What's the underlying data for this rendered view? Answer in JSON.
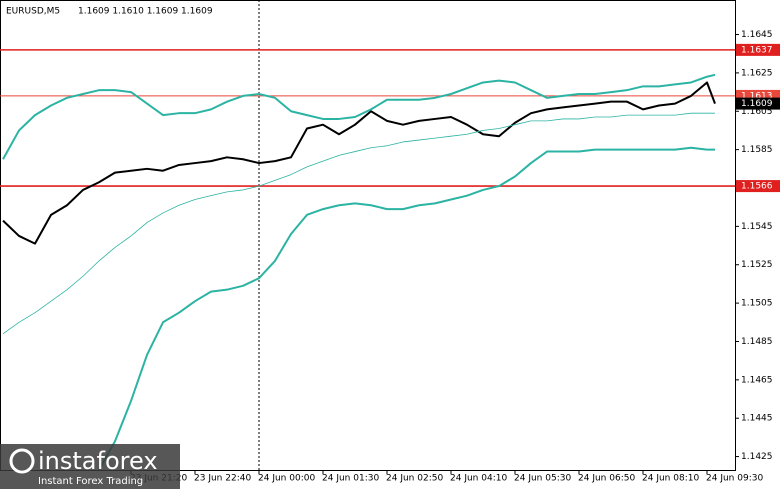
{
  "chart_data": {
    "type": "line",
    "title": "EURUSD,M5",
    "subtitle": "1.1609 1.1610 1.1609 1.1609",
    "x": [
      0,
      4,
      8,
      12,
      16,
      20,
      24,
      28,
      32,
      36,
      40,
      44,
      48,
      52,
      56,
      60,
      64,
      68,
      72,
      76,
      80,
      84,
      88,
      92,
      96,
      100,
      104,
      108,
      112,
      116,
      120,
      124,
      128,
      132,
      136,
      140,
      144,
      148,
      152,
      156,
      160,
      164,
      168,
      172,
      176,
      178
    ],
    "series": [
      {
        "color": "#000000",
        "values": [
          1.1548,
          1.154,
          1.1536,
          1.1551,
          1.1556,
          1.1564,
          1.1568,
          1.1573,
          1.1574,
          1.1575,
          1.1574,
          1.1577,
          1.1578,
          1.1579,
          1.1581,
          1.158,
          1.1578,
          1.1579,
          1.1581,
          1.1596,
          1.1598,
          1.1593,
          1.1598,
          1.1605,
          1.16,
          1.1598,
          1.16,
          1.1601,
          1.1602,
          1.1598,
          1.1593,
          1.1592,
          1.1599,
          1.1604,
          1.1606,
          1.1607,
          1.1608,
          1.1609,
          1.161,
          1.161,
          1.1606,
          1.1608,
          1.1609,
          1.1613,
          1.162,
          1.1609
        ]
      },
      {
        "color": "#2bb3a3",
        "values": [
          1.158,
          1.1595,
          1.1603,
          1.1608,
          1.1612,
          1.1614,
          1.1616,
          1.1616,
          1.1615,
          1.1609,
          1.1603,
          1.1604,
          1.1604,
          1.1606,
          1.161,
          1.1613,
          1.1614,
          1.1612,
          1.1605,
          1.1603,
          1.1601,
          1.1601,
          1.1602,
          1.1606,
          1.1611,
          1.1611,
          1.1611,
          1.1612,
          1.1614,
          1.1617,
          1.162,
          1.1621,
          1.162,
          1.1616,
          1.1612,
          1.1613,
          1.1614,
          1.1614,
          1.1615,
          1.1616,
          1.1618,
          1.1618,
          1.1619,
          1.162,
          1.1623,
          1.1624
        ]
      },
      {
        "color": "#2bb3a3",
        "values": [
          null,
          null,
          null,
          null,
          null,
          null,
          1.1418,
          1.1433,
          1.1454,
          1.1478,
          1.1495,
          1.15,
          1.1506,
          1.1511,
          1.1512,
          1.1514,
          1.1518,
          1.1527,
          1.1541,
          1.1551,
          1.1554,
          1.1556,
          1.1557,
          1.1556,
          1.1554,
          1.1554,
          1.1556,
          1.1557,
          1.1559,
          1.1561,
          1.1564,
          1.1566,
          1.1571,
          1.1578,
          1.1584,
          1.1584,
          1.1584,
          1.1585,
          1.1585,
          1.1585,
          1.1585,
          1.1585,
          1.1585,
          1.1586,
          1.1585,
          1.1585
        ]
      },
      {
        "color": "#2bb3a3",
        "width": 0.8,
        "values": [
          1.1489,
          1.1495,
          1.15,
          1.1506,
          1.1512,
          1.1519,
          1.1527,
          1.1534,
          1.154,
          1.1547,
          1.1552,
          1.1556,
          1.1559,
          1.1561,
          1.1563,
          1.1564,
          1.1566,
          1.1569,
          1.1572,
          1.1576,
          1.1579,
          1.1582,
          1.1584,
          1.1586,
          1.1587,
          1.1589,
          1.159,
          1.1591,
          1.1592,
          1.1593,
          1.1595,
          1.1596,
          1.1598,
          1.16,
          1.16,
          1.1601,
          1.1601,
          1.1602,
          1.1602,
          1.1603,
          1.1603,
          1.1603,
          1.1603,
          1.1604,
          1.1604,
          1.1604
        ]
      }
    ],
    "xlim": [
      -0.75,
      183
    ],
    "ylim": [
      1.1418,
      1.1663
    ],
    "yticks": [
      1.1645,
      1.1625,
      1.1605,
      1.1585,
      1.1565,
      1.1545,
      1.1525,
      1.1505,
      1.1485,
      1.1465,
      1.1445,
      1.1425
    ],
    "xticks": [
      {
        "value": 32,
        "label": "23 Jun 21:20"
      },
      {
        "value": 48,
        "label": "23 Jun 22:40"
      },
      {
        "value": 64,
        "label": "24 Jun 00:00"
      },
      {
        "value": 80,
        "label": "24 Jun 01:30"
      },
      {
        "value": 96,
        "label": "24 Jun 02:50"
      },
      {
        "value": 112,
        "label": "24 Jun 04:10"
      },
      {
        "value": 128,
        "label": "24 Jun 05:30"
      },
      {
        "value": 144,
        "label": "24 Jun 06:50"
      },
      {
        "value": 160,
        "label": "24 Jun 08:10"
      },
      {
        "value": 176,
        "label": "24 Jun 09:30"
      }
    ],
    "hlines": [
      1.1637,
      1.1613,
      1.1566
    ],
    "hline_colors": [
      "#e01f1f",
      "#e8483a",
      "#e01f1f"
    ],
    "current_price": 1.1609,
    "vline_x": 64
  },
  "logo": {
    "brand": "instaforex",
    "tagline": "Instant Forex Trading"
  }
}
